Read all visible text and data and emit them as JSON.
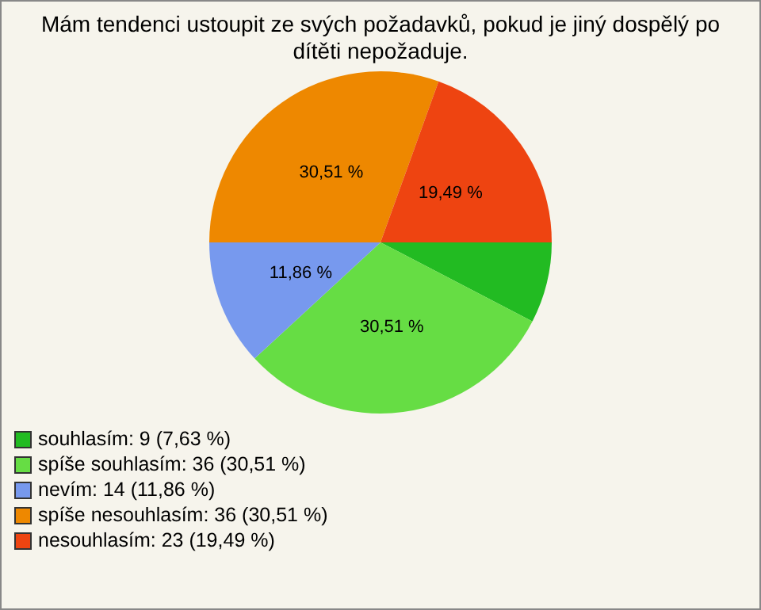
{
  "chart_data": {
    "type": "pie",
    "title": "Mám tendenci ustoupit ze svých požadavků, pokud je jiný dospělý po dítěti nepožaduje.",
    "categories": [
      "souhlasím: 9 (7,63 %)",
      "spíše souhlasím: 36 (30,51 %)",
      "nevím: 14 (11,86 %)",
      "spíše nesouhlasím: 36 (30,51 %)",
      "nesouhlasím: 23 (19,49 %)"
    ],
    "values": [
      7.63,
      30.51,
      11.86,
      30.51,
      19.49
    ],
    "value_labels": [
      null,
      "30,51 %",
      "11,86 %",
      "30,51 %",
      "19,49 %"
    ],
    "colors": [
      "#22bb22",
      "#66dd44",
      "#7799ee",
      "#ee8800",
      "#ee4411"
    ],
    "legend": "bottom left"
  }
}
